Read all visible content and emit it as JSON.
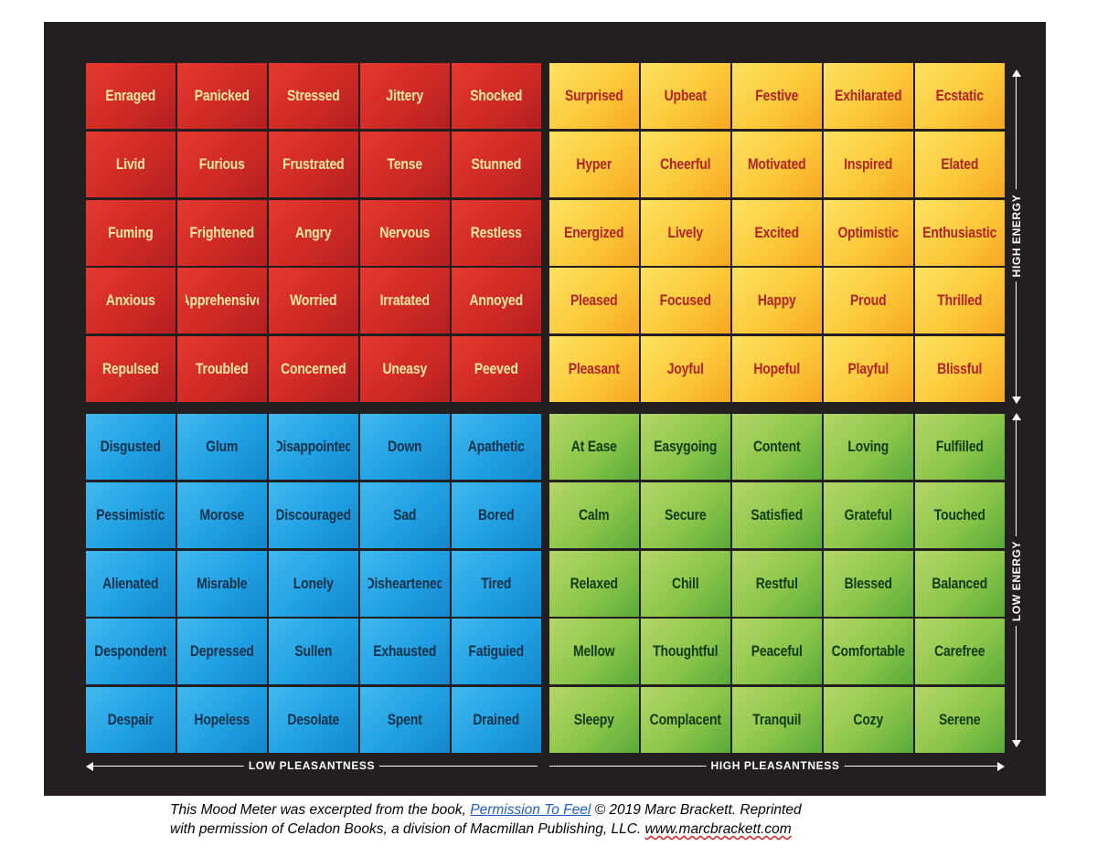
{
  "quadrants": {
    "red": [
      [
        "Enraged",
        "Panicked",
        "Stressed",
        "Jittery",
        "Shocked"
      ],
      [
        "Livid",
        "Furious",
        "Frustrated",
        "Tense",
        "Stunned"
      ],
      [
        "Fuming",
        "Frightened",
        "Angry",
        "Nervous",
        "Restless"
      ],
      [
        "Anxious",
        "Apprehensive",
        "Worried",
        "Irratated",
        "Annoyed"
      ],
      [
        "Repulsed",
        "Troubled",
        "Concerned",
        "Uneasy",
        "Peeved"
      ]
    ],
    "yellow": [
      [
        "Surprised",
        "Upbeat",
        "Festive",
        "Exhilarated",
        "Ecstatic"
      ],
      [
        "Hyper",
        "Cheerful",
        "Motivated",
        "Inspired",
        "Elated"
      ],
      [
        "Energized",
        "Lively",
        "Excited",
        "Optimistic",
        "Enthusiastic"
      ],
      [
        "Pleased",
        "Focused",
        "Happy",
        "Proud",
        "Thrilled"
      ],
      [
        "Pleasant",
        "Joyful",
        "Hopeful",
        "Playful",
        "Blissful"
      ]
    ],
    "blue": [
      [
        "Disgusted",
        "Glum",
        "Disappointed",
        "Down",
        "Apathetic"
      ],
      [
        "Pessimistic",
        "Morose",
        "Discouraged",
        "Sad",
        "Bored"
      ],
      [
        "Alienated",
        "Misrable",
        "Lonely",
        "Disheartened",
        "Tired"
      ],
      [
        "Despondent",
        "Depressed",
        "Sullen",
        "Exhausted",
        "Fatiguied"
      ],
      [
        "Despair",
        "Hopeless",
        "Desolate",
        "Spent",
        "Drained"
      ]
    ],
    "green": [
      [
        "At Ease",
        "Easygoing",
        "Content",
        "Loving",
        "Fulfilled"
      ],
      [
        "Calm",
        "Secure",
        "Satisfied",
        "Grateful",
        "Touched"
      ],
      [
        "Relaxed",
        "Chill",
        "Restful",
        "Blessed",
        "Balanced"
      ],
      [
        "Mellow",
        "Thoughtful",
        "Peaceful",
        "Comfortable",
        "Carefree"
      ],
      [
        "Sleepy",
        "Complacent",
        "Tranquil",
        "Cozy",
        "Serene"
      ]
    ]
  },
  "axes": {
    "low_pleasantness": "LOW PLEASANTNESS",
    "high_pleasantness": "HIGH PLEASANTNESS",
    "high_energy": "HIGH ENERGY",
    "low_energy": "LOW ENERGY"
  },
  "caption": {
    "prefix": "This Mood Meter was excerpted from the book,",
    "book_link": "Permission To Feel",
    "middle": "© 2019 Marc Brackett. Reprinted",
    "line2": "with permission of Celadon Books, a division of Macmillan Publishing, LLC.",
    "website": "www.marcbrackett.com"
  },
  "colors": {
    "background": "#231f20",
    "red": "#d12c26",
    "yellow": "#fcc93a",
    "blue": "#1fa0e2",
    "green": "#8cc64a"
  }
}
